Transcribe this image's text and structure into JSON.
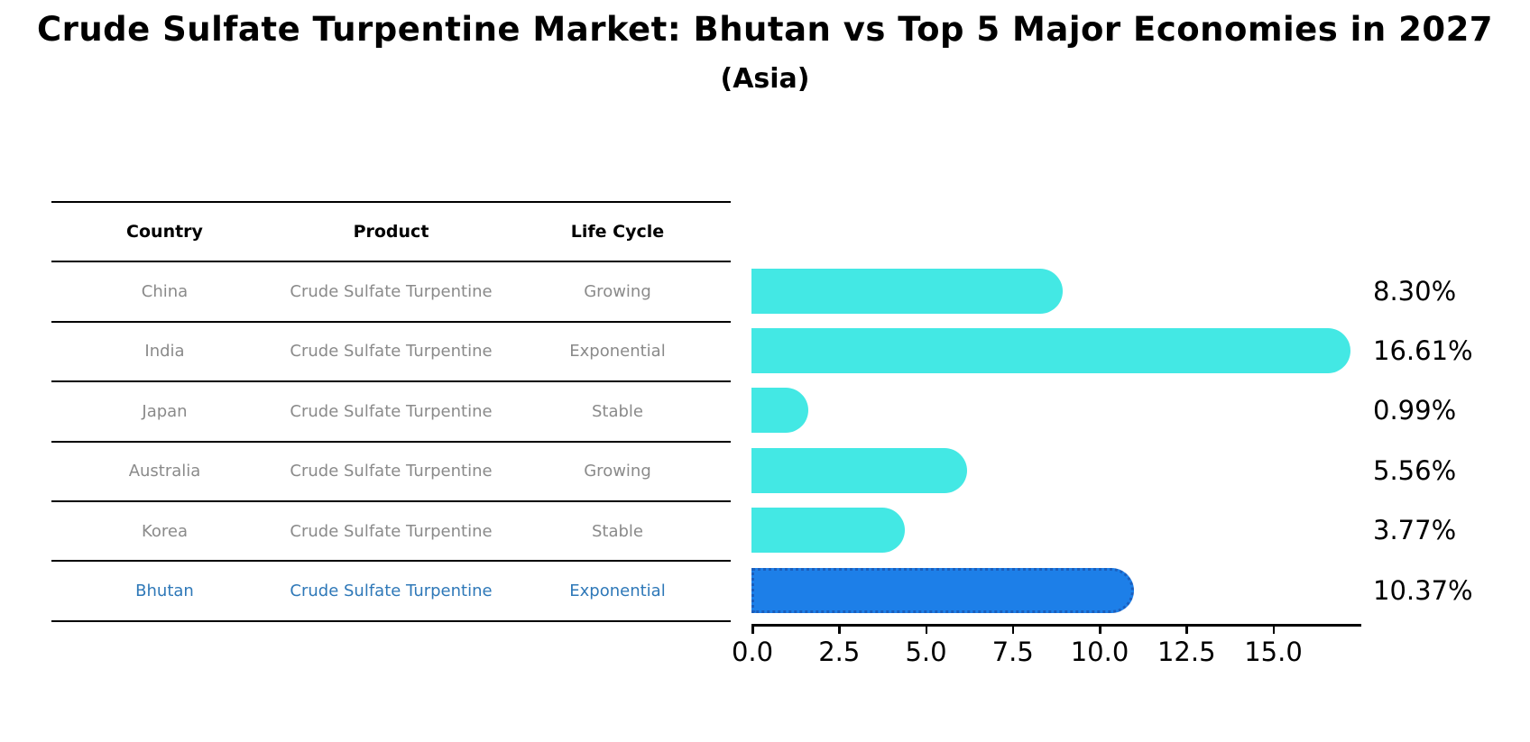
{
  "title": "Crude Sulfate Turpentine Market: Bhutan vs Top 5 Major Economies in 2027",
  "subtitle": "(Asia)",
  "table": {
    "headers": [
      "Country",
      "Product",
      "Life Cycle"
    ],
    "rows": [
      {
        "country": "China",
        "product": "Crude Sulfate Turpentine",
        "life_cycle": "Growing",
        "highlighted": false
      },
      {
        "country": "India",
        "product": "Crude Sulfate Turpentine",
        "life_cycle": "Exponential",
        "highlighted": false
      },
      {
        "country": "Japan",
        "product": "Crude Sulfate Turpentine",
        "life_cycle": "Stable",
        "highlighted": false
      },
      {
        "country": "Australia",
        "product": "Crude Sulfate Turpentine",
        "life_cycle": "Growing",
        "highlighted": false
      },
      {
        "country": "Korea",
        "product": "Crude Sulfate Turpentine",
        "life_cycle": "Stable",
        "highlighted": false
      },
      {
        "country": "Bhutan",
        "product": "Crude Sulfate Turpentine",
        "life_cycle": "Exponential",
        "highlighted": true
      }
    ]
  },
  "chart_data": {
    "type": "bar",
    "orientation": "horizontal",
    "categories": [
      "China",
      "India",
      "Japan",
      "Australia",
      "Korea",
      "Bhutan"
    ],
    "values": [
      8.3,
      16.61,
      0.99,
      5.56,
      3.77,
      10.37
    ],
    "value_labels": [
      "8.30%",
      "16.61%",
      "0.99%",
      "5.56%",
      "3.77%",
      "10.37%"
    ],
    "x_ticks": [
      0.0,
      2.5,
      5.0,
      7.5,
      10.0,
      12.5,
      15.0
    ],
    "x_tick_labels": [
      "0.0",
      "2.5",
      "5.0",
      "7.5",
      "10.0",
      "12.5",
      "15.0"
    ],
    "xlim": [
      0,
      17.5
    ],
    "grid": false,
    "legend": null,
    "highlight_index": 5,
    "bar_color": "#43e8e4",
    "highlight_bar_color": "#1d7fe8",
    "title": "Crude Sulfate Turpentine Market: Bhutan vs Top 5 Major Economies in 2027 (Asia)",
    "xlabel": "",
    "ylabel": ""
  },
  "colors": {
    "background": "#ffffff",
    "bar": "#43e8e4",
    "highlight_bar": "#1d7fe8",
    "highlight_bar_border": "#1b5ebc",
    "table_text": "#8a8a8a",
    "highlight_text": "#2e78b8",
    "axis": "#000000",
    "title_text": "#000000"
  }
}
